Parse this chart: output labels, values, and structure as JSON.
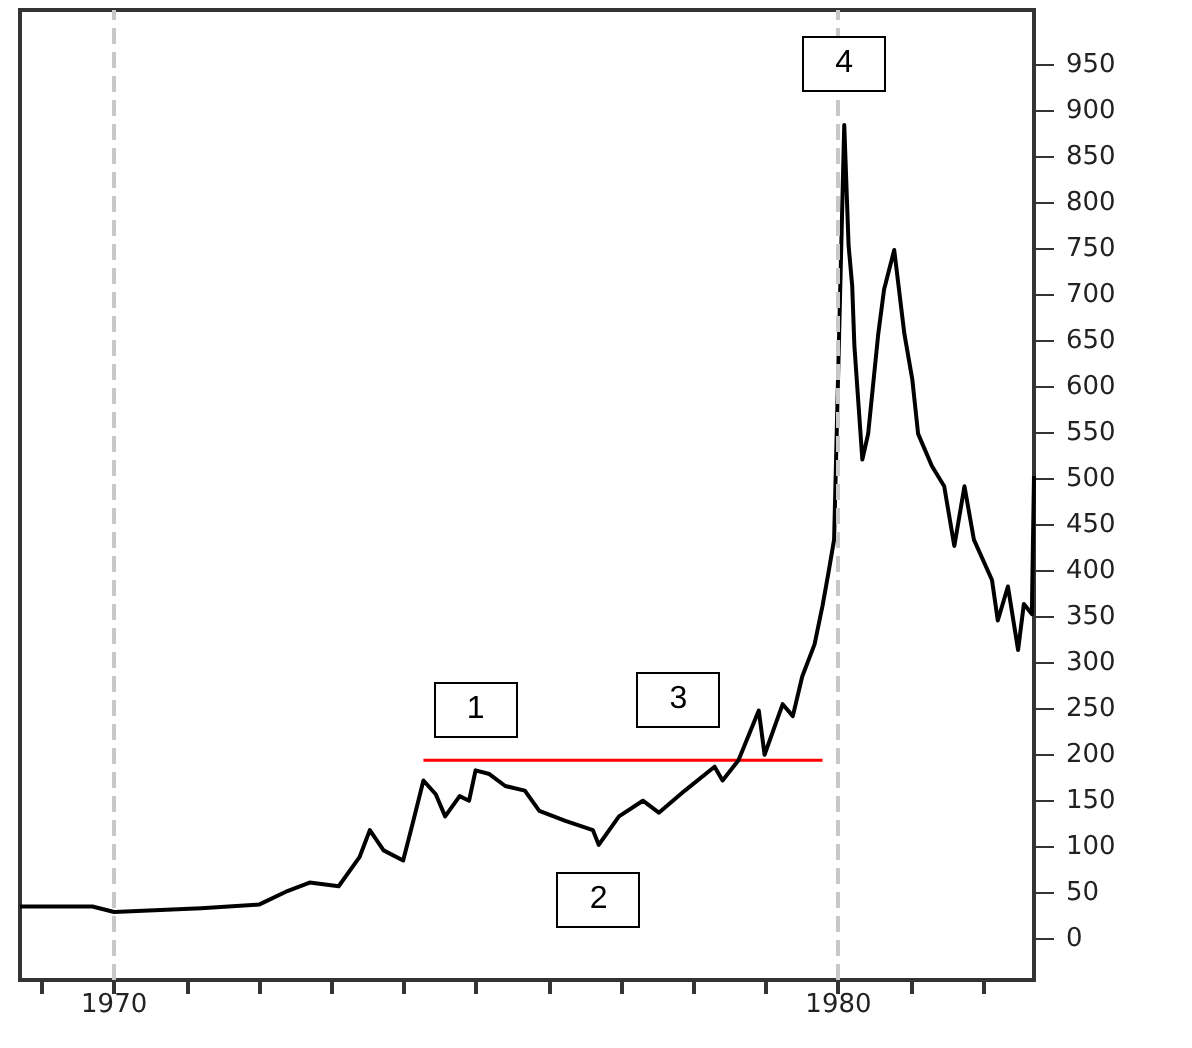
{
  "chart_data": {
    "type": "line",
    "x": [
      1968.7,
      1969.7,
      1970.0,
      1971.2,
      1972.0,
      1972.4,
      1972.7,
      1973.1,
      1973.39,
      1973.53,
      1973.72,
      1973.99,
      1974.13,
      1974.27,
      1974.44,
      1974.57,
      1974.77,
      1974.9,
      1974.99,
      1975.18,
      1975.4,
      1975.67,
      1975.87,
      1976.23,
      1976.61,
      1976.69,
      1976.97,
      1977.3,
      1977.52,
      1977.88,
      1978.29,
      1978.4,
      1978.62,
      1978.9,
      1978.98,
      1979.23,
      1979.37,
      1979.5,
      1979.67,
      1979.78,
      1979.86,
      1979.94,
      1980.08,
      1980.14,
      1980.19,
      1980.22,
      1980.33,
      1980.41,
      1980.55,
      1980.63,
      1980.77,
      1980.91,
      1981.02,
      1981.1,
      1981.29,
      1981.46,
      1981.6,
      1981.74,
      1981.87,
      1982.12,
      1982.2,
      1982.34,
      1982.48,
      1982.56,
      1982.67,
      1982.7
    ],
    "series": [
      {
        "color": "#000000",
        "values": [
          35,
          35,
          29,
          33,
          37,
          52,
          61,
          57,
          89,
          118,
          96,
          85,
          128,
          172,
          157,
          133,
          155,
          150,
          183,
          179,
          166,
          161,
          139,
          128,
          118,
          102,
          133,
          150,
          137,
          161,
          187,
          172,
          194,
          248,
          200,
          255,
          242,
          285,
          320,
          362,
          397,
          434,
          885,
          754,
          710,
          645,
          521,
          549,
          658,
          706,
          749,
          658,
          608,
          549,
          514,
          492,
          427,
          492,
          434,
          390,
          346,
          383,
          314,
          364,
          353,
          503
        ]
      },
      {
        "color": "#ff0000",
        "x": [
          1974.27,
          1979.78
        ],
        "values": [
          194,
          194
        ]
      }
    ],
    "xlim": [
      1968.7,
      1982.7
    ],
    "xticks": [
      {
        "value": 1969,
        "label": null
      },
      {
        "value": 1970,
        "label": "1970"
      },
      {
        "value": 1971,
        "label": null
      },
      {
        "value": 1972,
        "label": null
      },
      {
        "value": 1973,
        "label": null
      },
      {
        "value": 1974,
        "label": null
      },
      {
        "value": 1975,
        "label": null
      },
      {
        "value": 1976,
        "label": null
      },
      {
        "value": 1977,
        "label": null
      },
      {
        "value": 1978,
        "label": null
      },
      {
        "value": 1979,
        "label": null
      },
      {
        "value": 1980,
        "label": "1980"
      },
      {
        "value": 1981,
        "label": null
      },
      {
        "value": 1982,
        "label": null
      }
    ],
    "ylim": [
      -45,
      1010
    ],
    "yticks": [
      0,
      50,
      100,
      150,
      200,
      250,
      300,
      350,
      400,
      450,
      500,
      550,
      600,
      650,
      700,
      750,
      800,
      850,
      900,
      950
    ],
    "ref_lines": [
      {
        "axis": "x",
        "value": 1970,
        "color": "#c8c8c8",
        "line_style": "dashed"
      },
      {
        "axis": "x",
        "value": 1980,
        "color": "#c8c8c8",
        "line_style": "dashed"
      }
    ],
    "annotations": [
      {
        "text": "1",
        "x": 1974.99,
        "y": 183
      },
      {
        "text": "2",
        "x": 1976.69,
        "y": 102
      },
      {
        "text": "3",
        "x": 1978.62,
        "y": 194
      },
      {
        "text": "4",
        "x": 1980.08,
        "y": 885
      }
    ],
    "grid": false
  }
}
